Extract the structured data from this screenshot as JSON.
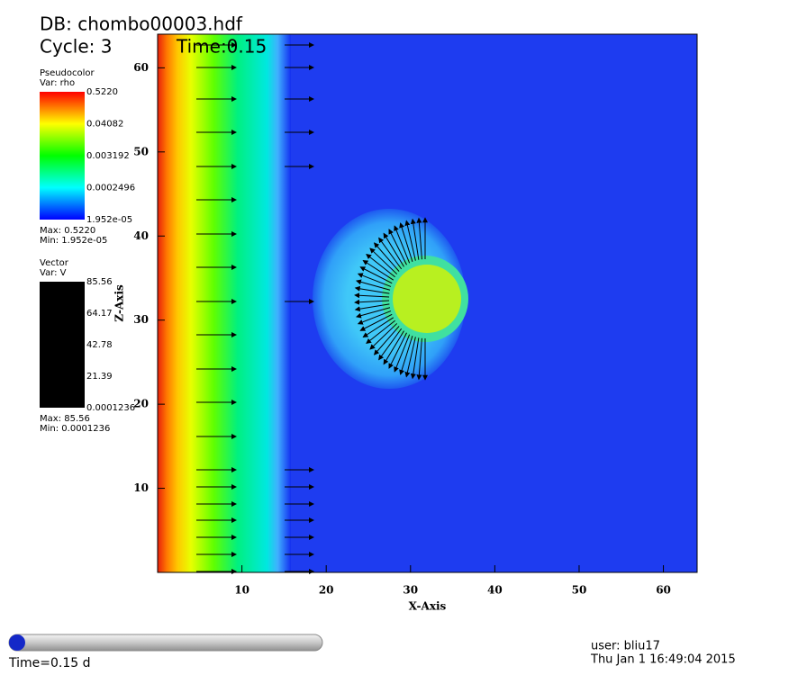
{
  "header": {
    "db": "DB: chombo00003.hdf",
    "cycle": "Cycle: 3",
    "time": "Time:0.15"
  },
  "chart_data": {
    "type": "pseudocolor",
    "x_label": "X-Axis",
    "y_label": "Z-Axis",
    "xlim": [
      0,
      64
    ],
    "ylim": [
      0,
      64
    ],
    "xticks": [
      10,
      20,
      30,
      40,
      50,
      60
    ],
    "yticks": [
      10,
      20,
      30,
      40,
      50,
      60
    ]
  },
  "legend_pseudo": {
    "title": "Pseudocolor",
    "var": "Var: rho",
    "labels": [
      "0.5220",
      "0.04082",
      "0.003192",
      "0.0002496",
      "1.952e-05"
    ],
    "max": "Max: 0.5220",
    "min": "Min: 1.952e-05"
  },
  "legend_vector": {
    "title": "Vector",
    "var": "Var: V",
    "labels": [
      "85.56",
      "64.17",
      "42.78",
      "21.39",
      "0.0001236"
    ],
    "max": "Max: 85.56",
    "min": "Min: 0.0001236"
  },
  "footer": {
    "time_slider": "Time=0.15 d",
    "user": "user: bliu17",
    "date": "Thu Jan  1 16:49:04 2015"
  }
}
